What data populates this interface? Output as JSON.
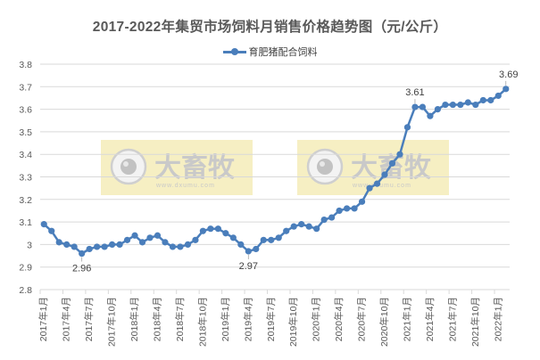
{
  "chart_data": {
    "type": "line",
    "title": "2017-2022年集贸市场饲料月销售价格趋势图（元/公斤）",
    "xlabel": "",
    "ylabel": "",
    "ylim": [
      2.8,
      3.8
    ],
    "yticks": [
      "3.8",
      "3.7",
      "3.6",
      "3.5",
      "3.4",
      "3.3",
      "3.2",
      "3.1",
      "3",
      "2.9",
      "2.8"
    ],
    "grid": true,
    "legend_position": "top",
    "x_tick_labels": [
      "2017年1月",
      "2017年4月",
      "2017年7月",
      "2017年10月",
      "2018年1月",
      "2018年4月",
      "2018年7月",
      "2018年10月",
      "2019年1月",
      "2019年4月",
      "2019年7月",
      "2019年10月",
      "2020年1月",
      "2020年4月",
      "2020年7月",
      "2020年10月",
      "2021年1月",
      "2021年4月",
      "2021年7月",
      "2021年10月",
      "2022年1月"
    ],
    "categories": [
      "2017年1月",
      "2017年2月",
      "2017年3月",
      "2017年4月",
      "2017年5月",
      "2017年6月",
      "2017年7月",
      "2017年8月",
      "2017年9月",
      "2017年10月",
      "2017年11月",
      "2017年12月",
      "2018年1月",
      "2018年2月",
      "2018年3月",
      "2018年4月",
      "2018年5月",
      "2018年6月",
      "2018年7月",
      "2018年8月",
      "2018年9月",
      "2018年10月",
      "2018年11月",
      "2018年12月",
      "2019年1月",
      "2019年2月",
      "2019年3月",
      "2019年4月",
      "2019年5月",
      "2019年6月",
      "2019年7月",
      "2019年8月",
      "2019年9月",
      "2019年10月",
      "2019年11月",
      "2019年12月",
      "2020年1月",
      "2020年2月",
      "2020年3月",
      "2020年4月",
      "2020年5月",
      "2020年6月",
      "2020年7月",
      "2020年8月",
      "2020年9月",
      "2020年10月",
      "2020年11月",
      "2020年12月",
      "2021年1月",
      "2021年2月",
      "2021年3月",
      "2021年4月",
      "2021年5月",
      "2021年6月",
      "2021年7月",
      "2021年8月",
      "2021年9月",
      "2021年10月",
      "2021年11月",
      "2021年12月",
      "2022年1月",
      "2022年2月"
    ],
    "series": [
      {
        "name": "育肥猪配合饲料",
        "color": "#4a7ebb",
        "values": [
          3.09,
          3.06,
          3.01,
          3.0,
          2.99,
          2.96,
          2.98,
          2.99,
          2.99,
          3.0,
          3.0,
          3.02,
          3.04,
          3.01,
          3.03,
          3.04,
          3.01,
          2.99,
          2.99,
          3.0,
          3.02,
          3.06,
          3.07,
          3.07,
          3.05,
          3.03,
          3.0,
          2.97,
          2.98,
          3.02,
          3.02,
          3.03,
          3.06,
          3.08,
          3.09,
          3.08,
          3.07,
          3.11,
          3.12,
          3.15,
          3.16,
          3.16,
          3.19,
          3.25,
          3.27,
          3.31,
          3.36,
          3.4,
          3.52,
          3.61,
          3.61,
          3.57,
          3.6,
          3.62,
          3.62,
          3.62,
          3.63,
          3.62,
          3.64,
          3.64,
          3.66,
          3.69
        ]
      }
    ],
    "annotations": [
      {
        "index": 5,
        "text": "2.96",
        "position": "below"
      },
      {
        "index": 27,
        "text": "2.97",
        "position": "below"
      },
      {
        "index": 49,
        "text": "3.61",
        "position": "above"
      },
      {
        "index": 61,
        "text": "3.69",
        "position": "above"
      }
    ],
    "watermark": {
      "brand": "大畜牧",
      "url": "www.dxumu.com"
    }
  },
  "legend": {
    "label": "育肥猪配合饲料"
  }
}
